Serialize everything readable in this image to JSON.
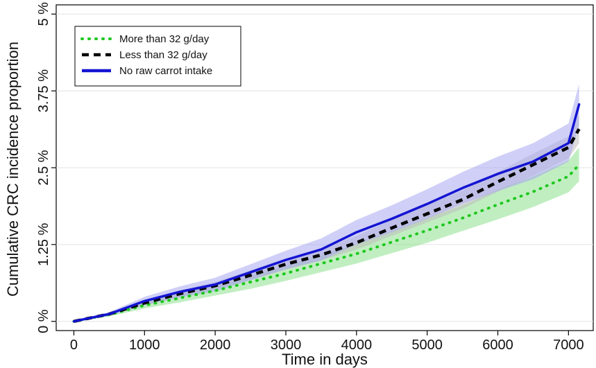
{
  "chart_data": {
    "type": "line",
    "title": "",
    "xlabel": "Time in days",
    "ylabel": "Cumulative CRC incidence proportion",
    "xlim": [
      -250,
      7350
    ],
    "ylim": [
      -0.0015,
      0.0515
    ],
    "x_ticks": [
      0,
      1000,
      2000,
      3000,
      4000,
      5000,
      6000,
      7000
    ],
    "x_tick_labels": [
      "0",
      "1000",
      "2000",
      "3000",
      "4000",
      "5000",
      "6000",
      "7000"
    ],
    "y_ticks": [
      0,
      0.0125,
      0.025,
      0.0375,
      0.05
    ],
    "y_tick_labels": [
      "0 %",
      "1.25 %",
      "2.5 %",
      "3.75 %",
      "5 %"
    ],
    "grid": "horizontal",
    "legend_position": "top-left",
    "x": [
      0,
      500,
      1000,
      1500,
      2000,
      2500,
      3000,
      3500,
      4000,
      4500,
      5000,
      5500,
      6000,
      6500,
      7000,
      7150
    ],
    "series": [
      {
        "name": "More than 32 g/day",
        "color": "#1ec81e",
        "style": "dotted",
        "values": [
          0,
          0.0011,
          0.0026,
          0.0038,
          0.005,
          0.0064,
          0.0078,
          0.0094,
          0.011,
          0.0129,
          0.0148,
          0.0168,
          0.019,
          0.0211,
          0.0236,
          0.0255
        ],
        "lower": [
          0,
          0.0008,
          0.0021,
          0.0031,
          0.0042,
          0.0053,
          0.0066,
          0.008,
          0.0094,
          0.0111,
          0.0128,
          0.0147,
          0.0166,
          0.0186,
          0.021,
          0.0228
        ],
        "upper": [
          0,
          0.0014,
          0.0031,
          0.0045,
          0.0058,
          0.0074,
          0.009,
          0.0108,
          0.0126,
          0.0147,
          0.0168,
          0.0189,
          0.0214,
          0.0236,
          0.0262,
          0.0283
        ],
        "band_color": "#8ee08e"
      },
      {
        "name": "Less than 32 g/day",
        "color": "#000000",
        "style": "dashed",
        "values": [
          0,
          0.0012,
          0.003,
          0.0045,
          0.0058,
          0.0075,
          0.0093,
          0.0108,
          0.0128,
          0.0152,
          0.0175,
          0.0198,
          0.0227,
          0.0255,
          0.0283,
          0.0313
        ],
        "lower": [
          0,
          0.001,
          0.0026,
          0.004,
          0.0052,
          0.0067,
          0.0084,
          0.0099,
          0.0117,
          0.0139,
          0.0161,
          0.0183,
          0.0211,
          0.0237,
          0.0265,
          0.029
        ],
        "upper": [
          0,
          0.0014,
          0.0034,
          0.005,
          0.0064,
          0.0083,
          0.0102,
          0.0117,
          0.0139,
          0.0165,
          0.0189,
          0.0213,
          0.0243,
          0.0273,
          0.0301,
          0.0336
        ],
        "band_color": "#bdbdbd"
      },
      {
        "name": "No raw carrot intake",
        "color": "#1414d2",
        "style": "solid",
        "values": [
          0,
          0.0012,
          0.0033,
          0.0048,
          0.006,
          0.008,
          0.01,
          0.0117,
          0.0145,
          0.0167,
          0.0191,
          0.0217,
          0.024,
          0.026,
          0.029,
          0.0353
        ],
        "lower": [
          0,
          0.0009,
          0.0026,
          0.0039,
          0.0049,
          0.0067,
          0.0085,
          0.0099,
          0.0125,
          0.0145,
          0.0167,
          0.0191,
          0.0212,
          0.0231,
          0.026,
          0.032
        ],
        "upper": [
          0,
          0.0015,
          0.004,
          0.0057,
          0.0071,
          0.0093,
          0.0115,
          0.0135,
          0.0165,
          0.0189,
          0.0215,
          0.0243,
          0.0268,
          0.029,
          0.0322,
          0.0386
        ],
        "band_color": "#a8a8f0"
      }
    ]
  }
}
